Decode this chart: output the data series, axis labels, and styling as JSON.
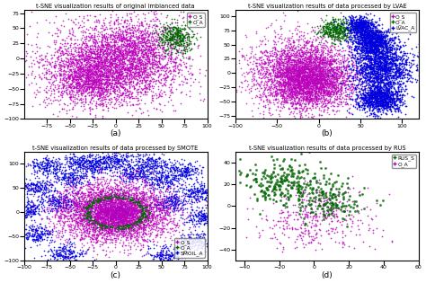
{
  "title_a": "t-SNE visualization results of original imblanced data",
  "title_b": "t-SNE visualization results of data processed by LVAE",
  "title_c": "t-SNE visualization results of data processed by SMOTE",
  "title_d": "t-SNE visualization results of data processed by RUS",
  "label_a": "(a)",
  "label_b": "(b)",
  "label_c": "(c)",
  "label_d": "(d)",
  "colors": {
    "majority": "#bb00bb",
    "minority": "#006600",
    "synthetic_lvae": "#0000dd",
    "synthetic_smote": "#0000dd",
    "rus_minority": "#006600",
    "rus_majority": "#bb00bb"
  },
  "n_majority": 5000,
  "n_minority": 400,
  "n_synthetic_lvae": 4000,
  "n_synthetic_smote": 4000,
  "n_rus_maj": 400,
  "n_rus_min": 400,
  "background": "#ffffff",
  "title_fs": 4.8,
  "tick_fs": 4.5,
  "legend_fs": 4.2,
  "label_fs": 6.5
}
